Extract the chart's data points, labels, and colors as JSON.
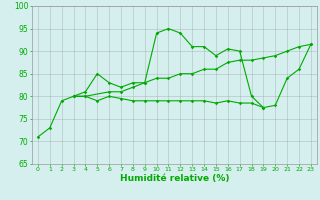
{
  "x": [
    0,
    1,
    2,
    3,
    4,
    5,
    6,
    7,
    8,
    9,
    10,
    11,
    12,
    13,
    14,
    15,
    16,
    17,
    18,
    19,
    20,
    21,
    22,
    23
  ],
  "line1": [
    71,
    73,
    79,
    80,
    81,
    85,
    83,
    82,
    83,
    83,
    94,
    95,
    94,
    91,
    91,
    89,
    90.5,
    90,
    80,
    77.5,
    78,
    84,
    86,
    91.5
  ],
  "line2_x": [
    3,
    4,
    5,
    6,
    7,
    8,
    9,
    10,
    11,
    12,
    13,
    14,
    15,
    16,
    17,
    18,
    19
  ],
  "line2_y": [
    80,
    80,
    79,
    80,
    79.5,
    79,
    79,
    79,
    79,
    79,
    79,
    79,
    78.5,
    79,
    78.5,
    78.5,
    77.5
  ],
  "line3_x": [
    3,
    4,
    6,
    7,
    8,
    9,
    10,
    11,
    12,
    13,
    14,
    15,
    16,
    17,
    18,
    19,
    20,
    21,
    22,
    23
  ],
  "line3_y": [
    80,
    80,
    81,
    81,
    82,
    83,
    84,
    84,
    85,
    85,
    86,
    86,
    87.5,
    88,
    88,
    88.5,
    89,
    90,
    91,
    91.5
  ],
  "bg_color": "#d4efee",
  "line_color": "#00aa00",
  "grid_color": "#999999",
  "xlabel": "Humidité relative (%)",
  "ylim": [
    65,
    100
  ],
  "xlim": [
    -0.5,
    23.5
  ],
  "yticks": [
    65,
    70,
    75,
    80,
    85,
    90,
    95,
    100
  ],
  "xticks": [
    0,
    1,
    2,
    3,
    4,
    5,
    6,
    7,
    8,
    9,
    10,
    11,
    12,
    13,
    14,
    15,
    16,
    17,
    18,
    19,
    20,
    21,
    22,
    23
  ]
}
